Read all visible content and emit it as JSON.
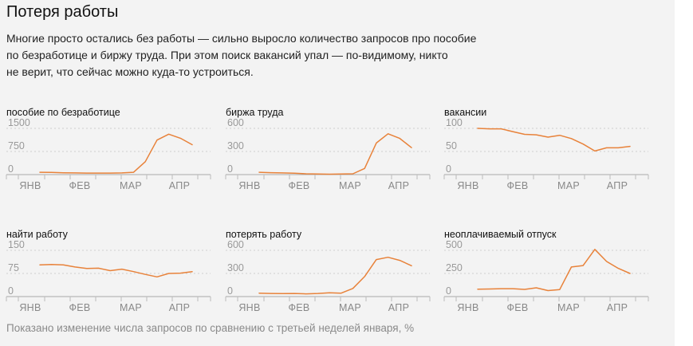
{
  "title": "Потеря работы",
  "lead": [
    "Многие просто остались без работы — сильно выросло количество запросов про пособие",
    "по безработице и биржу труда. При этом поиск вакансий упал — по-видимому, никто",
    "не верит, что сейчас можно куда-то устроиться."
  ],
  "footnote": "Показано изменение числа запросов по сравнению с третьей неделей января, %",
  "colors": {
    "line": "#e8823a",
    "panel": "#f3f3f3"
  },
  "chart_data": [
    {
      "type": "line",
      "title": "пособие по безработице",
      "x_labels": [
        "ЯНВ",
        "ФЕВ",
        "МАР",
        "АПР"
      ],
      "y_ticks": [
        0,
        750,
        1500
      ],
      "ylim": [
        0,
        1500
      ],
      "grid": true,
      "series": [
        {
          "values": [
            75,
            70,
            60,
            55,
            50,
            48,
            50,
            55,
            75,
            420,
            1120,
            1310,
            1180,
            970
          ]
        }
      ]
    },
    {
      "type": "line",
      "title": "биржа труда",
      "x_labels": [
        "ЯНВ",
        "ФЕВ",
        "МАР",
        "АПР"
      ],
      "y_ticks": [
        0,
        300,
        600
      ],
      "ylim": [
        0,
        600
      ],
      "grid": true,
      "series": [
        {
          "values": [
            30,
            25,
            22,
            18,
            10,
            8,
            5,
            8,
            10,
            80,
            410,
            530,
            470,
            350
          ]
        }
      ]
    },
    {
      "type": "line",
      "title": "вакансии",
      "x_labels": [
        "ЯНВ",
        "ФЕВ",
        "МАР",
        "АПР"
      ],
      "y_ticks": [
        0,
        50,
        100
      ],
      "ylim": [
        0,
        100
      ],
      "grid": true,
      "series": [
        {
          "values": [
            100,
            99,
            99,
            93,
            87,
            86,
            81,
            85,
            78,
            66,
            51,
            58,
            58,
            61
          ]
        }
      ]
    },
    {
      "type": "line",
      "title": "найти работу",
      "x_labels": [
        "ЯНВ",
        "ФЕВ",
        "МАР",
        "АПР"
      ],
      "y_ticks": [
        0,
        75,
        150
      ],
      "ylim": [
        0,
        150
      ],
      "grid": true,
      "series": [
        {
          "values": [
            103,
            104,
            103,
            96,
            91,
            92,
            84,
            89,
            81,
            72,
            64,
            75,
            76,
            81
          ]
        }
      ]
    },
    {
      "type": "line",
      "title": "потерять работу",
      "x_labels": [
        "ЯНВ",
        "ФЕВ",
        "МАР",
        "АПР"
      ],
      "y_ticks": [
        0,
        300,
        600
      ],
      "ylim": [
        0,
        600
      ],
      "grid": true,
      "series": [
        {
          "values": [
            45,
            40,
            38,
            40,
            35,
            40,
            50,
            45,
            105,
            260,
            480,
            510,
            470,
            400
          ]
        }
      ]
    },
    {
      "type": "line",
      "title": "неоплачиваемый отпуск",
      "x_labels": [
        "ЯНВ",
        "ФЕВ",
        "МАР",
        "АПР"
      ],
      "y_ticks": [
        0,
        250,
        500
      ],
      "ylim": [
        0,
        500
      ],
      "grid": true,
      "series": [
        {
          "values": [
            80,
            82,
            85,
            85,
            78,
            95,
            65,
            75,
            320,
            335,
            510,
            380,
            305,
            250
          ]
        }
      ]
    }
  ]
}
